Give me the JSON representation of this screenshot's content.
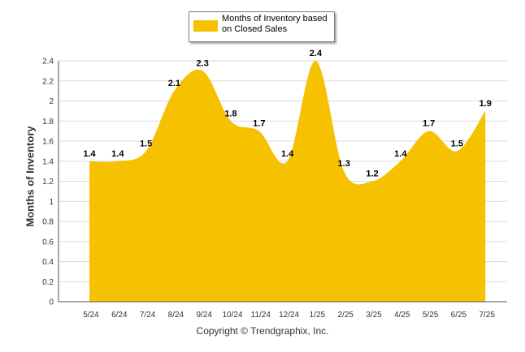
{
  "legend": {
    "label": "Months of Inventory based on Closed Sales"
  },
  "copyright": "Copyright © Trendgraphix, Inc.",
  "colors": {
    "fill": "#F5C100",
    "grid": "#d9d9d9",
    "axis": "#555555",
    "label": "#000000"
  },
  "chart_data": {
    "type": "area",
    "categories": [
      "5/24",
      "6/24",
      "7/24",
      "8/24",
      "9/24",
      "10/24",
      "11/24",
      "12/24",
      "1/25",
      "2/25",
      "3/25",
      "4/25",
      "5/25",
      "6/25",
      "7/25"
    ],
    "series": [
      {
        "name": "Months of Inventory based on Closed Sales",
        "values": [
          1.4,
          1.4,
          1.5,
          2.1,
          2.3,
          1.8,
          1.7,
          1.4,
          2.4,
          1.3,
          1.2,
          1.4,
          1.7,
          1.5,
          1.9
        ],
        "labels": [
          "1.4",
          "1.4",
          "1.5",
          "2.1",
          "2.3",
          "1.8",
          "1.7",
          "1.4",
          "2.4",
          "1.3",
          "1.2",
          "1.4",
          "1.7",
          "1.5",
          "1.9"
        ]
      }
    ],
    "ylabel": "Months of Inventory",
    "xlabel": "",
    "ylim": [
      0,
      2.4
    ],
    "yticks": [
      "0",
      "0.2",
      "0.4",
      "0.6",
      "0.8",
      "1",
      "1.2",
      "1.4",
      "1.6",
      "1.8",
      "2",
      "2.2",
      "2.4"
    ],
    "grid": true,
    "legend_position": "top"
  }
}
